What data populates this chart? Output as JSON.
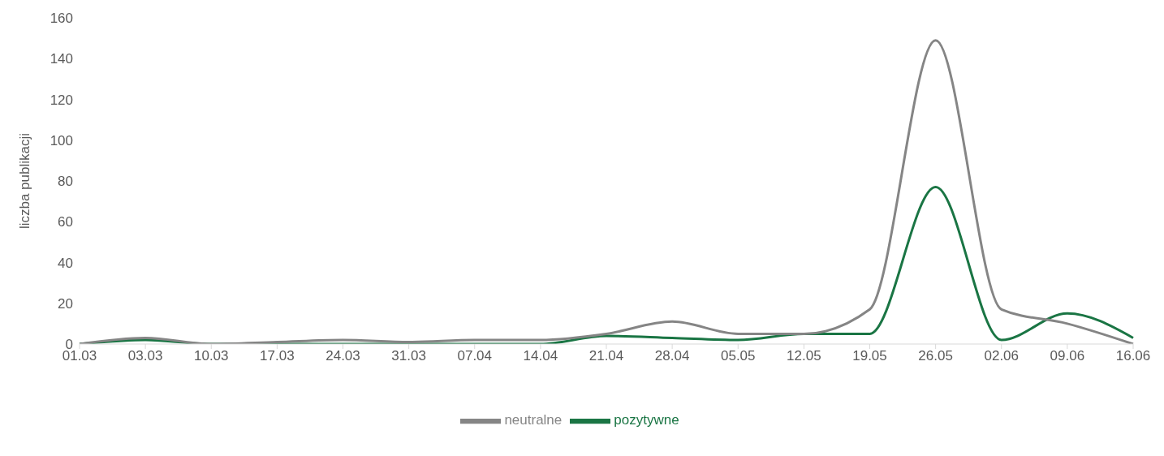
{
  "chart_data": {
    "type": "line",
    "ylabel": "liczba publikacji",
    "categories": [
      "01.03",
      "03.03",
      "10.03",
      "17.03",
      "24.03",
      "31.03",
      "07.04",
      "14.04",
      "21.04",
      "28.04",
      "05.05",
      "12.05",
      "19.05",
      "26.05",
      "02.06",
      "09.06",
      "16.06"
    ],
    "series": [
      {
        "name": "pozytywne",
        "color": "#1a7544",
        "values": [
          0,
          2,
          0,
          0,
          0,
          0,
          0,
          0,
          4,
          3,
          2,
          5,
          5,
          77,
          2,
          15,
          3
        ]
      },
      {
        "name": "neutralne",
        "color": "#858585",
        "values": [
          0,
          3,
          0,
          1,
          2,
          1,
          2,
          2,
          5,
          11,
          5,
          5,
          17,
          149,
          17,
          10,
          0
        ]
      }
    ],
    "ylim": [
      0,
      160
    ],
    "yticks": [
      0,
      20,
      40,
      60,
      80,
      100,
      120,
      140,
      160
    ],
    "grid": false,
    "legend": "bottom",
    "marker": "none",
    "line_style": "solid"
  }
}
